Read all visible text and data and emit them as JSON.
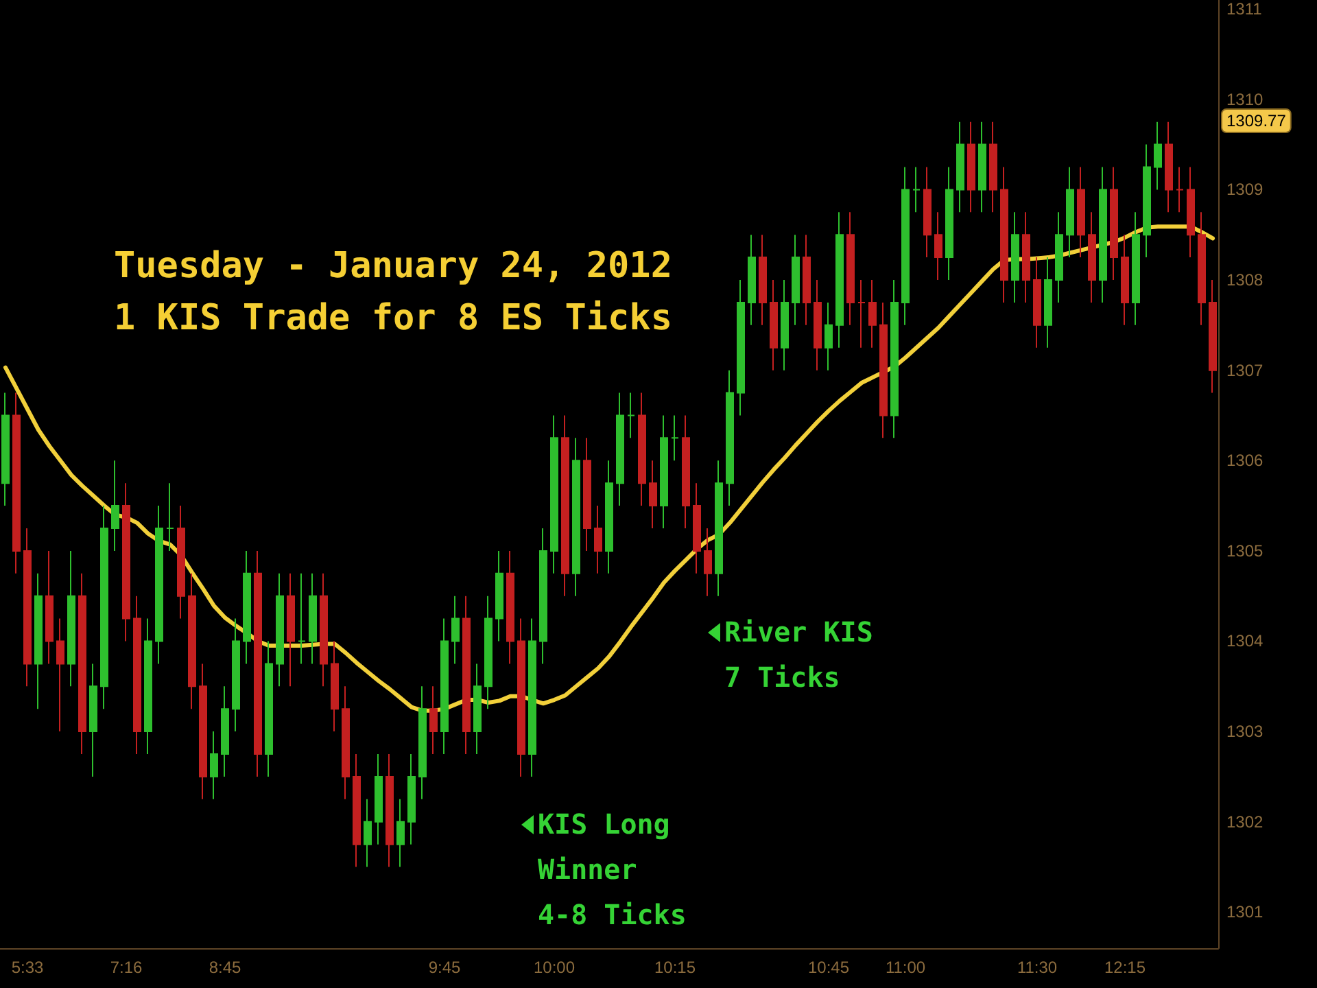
{
  "chart_data": {
    "type": "candlestick",
    "title": "Tuesday - January 24, 2012",
    "subtitle": "1 KIS Trade for 8 ES Ticks",
    "categories": [
      null,
      null,
      "5:33",
      null,
      null,
      null,
      null,
      null,
      null,
      null,
      null,
      "7:16",
      null,
      null,
      null,
      null,
      null,
      null,
      null,
      null,
      "8:45",
      null,
      null,
      null,
      null,
      null,
      null,
      null,
      null,
      null,
      null,
      null,
      null,
      null,
      null,
      null,
      null,
      null,
      null,
      null,
      "9:45",
      null,
      null,
      null,
      null,
      null,
      null,
      null,
      null,
      null,
      "10:00",
      null,
      null,
      null,
      null,
      null,
      null,
      null,
      null,
      null,
      null,
      "10:15",
      null,
      null,
      null,
      null,
      null,
      null,
      null,
      null,
      null,
      null,
      null,
      null,
      null,
      "10:45",
      null,
      null,
      null,
      null,
      null,
      null,
      "11:00",
      null,
      null,
      null,
      null,
      null,
      null,
      null,
      null,
      null,
      null,
      null,
      "11:30",
      null,
      null,
      null,
      null,
      null,
      null,
      null,
      "12:15",
      null,
      null,
      null,
      null,
      null,
      null,
      null,
      null
    ],
    "ylim": [
      1300.6,
      1311.1
    ],
    "yticks": [
      1301,
      1302,
      1303,
      1304,
      1305,
      1306,
      1307,
      1308,
      1309,
      1310,
      1311
    ],
    "series": [
      {
        "ohlc": [
          [
            1305.75,
            1306.75,
            1305.5,
            1306.5
          ],
          [
            1306.5,
            1306.75,
            1304.75,
            1305.0
          ],
          [
            1305.0,
            1305.25,
            1303.5,
            1303.75
          ],
          [
            1303.75,
            1304.75,
            1303.25,
            1304.5
          ],
          [
            1304.5,
            1305.0,
            1303.75,
            1304.0
          ],
          [
            1304.0,
            1304.25,
            1303.0,
            1303.75
          ],
          [
            1303.75,
            1305.0,
            1303.5,
            1304.5
          ],
          [
            1304.5,
            1304.75,
            1302.75,
            1303.0
          ],
          [
            1303.0,
            1303.75,
            1302.5,
            1303.5
          ],
          [
            1303.5,
            1305.5,
            1303.25,
            1305.25
          ],
          [
            1305.25,
            1306.0,
            1305.0,
            1305.5
          ],
          [
            1305.5,
            1305.75,
            1304.0,
            1304.25
          ],
          [
            1304.25,
            1304.5,
            1302.75,
            1303.0
          ],
          [
            1303.0,
            1304.25,
            1302.75,
            1304.0
          ],
          [
            1304.0,
            1305.5,
            1303.75,
            1305.25
          ],
          [
            1305.25,
            1305.75,
            1305.0,
            1305.25
          ],
          [
            1305.25,
            1305.5,
            1304.25,
            1304.5
          ],
          [
            1304.5,
            1304.75,
            1303.25,
            1303.5
          ],
          [
            1303.5,
            1303.75,
            1302.25,
            1302.5
          ],
          [
            1302.5,
            1303.0,
            1302.25,
            1302.75
          ],
          [
            1302.75,
            1303.5,
            1302.5,
            1303.25
          ],
          [
            1303.25,
            1304.25,
            1303.0,
            1304.0
          ],
          [
            1304.0,
            1305.0,
            1303.75,
            1304.75
          ],
          [
            1304.75,
            1305.0,
            1302.5,
            1302.75
          ],
          [
            1302.75,
            1304.0,
            1302.5,
            1303.75
          ],
          [
            1303.75,
            1304.75,
            1303.5,
            1304.5
          ],
          [
            1304.5,
            1304.75,
            1303.5,
            1304.0
          ],
          [
            1304.0,
            1304.75,
            1303.75,
            1304.0
          ],
          [
            1304.0,
            1304.75,
            1303.75,
            1304.5
          ],
          [
            1304.5,
            1304.75,
            1303.5,
            1303.75
          ],
          [
            1303.75,
            1304.0,
            1303.0,
            1303.25
          ],
          [
            1303.25,
            1303.5,
            1302.25,
            1302.5
          ],
          [
            1302.5,
            1302.75,
            1301.5,
            1301.75
          ],
          [
            1301.75,
            1302.25,
            1301.5,
            1302.0
          ],
          [
            1302.0,
            1302.75,
            1301.75,
            1302.5
          ],
          [
            1302.5,
            1302.75,
            1301.5,
            1301.75
          ],
          [
            1301.75,
            1302.25,
            1301.5,
            1302.0
          ],
          [
            1302.0,
            1302.75,
            1301.75,
            1302.5
          ],
          [
            1302.5,
            1303.5,
            1302.25,
            1303.25
          ],
          [
            1303.25,
            1303.5,
            1302.75,
            1303.0
          ],
          [
            1303.0,
            1304.25,
            1302.75,
            1304.0
          ],
          [
            1304.0,
            1304.5,
            1303.75,
            1304.25
          ],
          [
            1304.25,
            1304.5,
            1302.75,
            1303.0
          ],
          [
            1303.0,
            1303.75,
            1302.75,
            1303.5
          ],
          [
            1303.5,
            1304.5,
            1303.25,
            1304.25
          ],
          [
            1304.25,
            1305.0,
            1304.0,
            1304.75
          ],
          [
            1304.75,
            1305.0,
            1303.75,
            1304.0
          ],
          [
            1304.0,
            1304.25,
            1302.5,
            1302.75
          ],
          [
            1302.75,
            1304.25,
            1302.5,
            1304.0
          ],
          [
            1304.0,
            1305.25,
            1303.75,
            1305.0
          ],
          [
            1305.0,
            1306.5,
            1304.75,
            1306.25
          ],
          [
            1306.25,
            1306.5,
            1304.5,
            1304.75
          ],
          [
            1304.75,
            1306.25,
            1304.5,
            1306.0
          ],
          [
            1306.0,
            1306.25,
            1305.0,
            1305.25
          ],
          [
            1305.25,
            1305.5,
            1304.75,
            1305.0
          ],
          [
            1305.0,
            1306.0,
            1304.75,
            1305.75
          ],
          [
            1305.75,
            1306.75,
            1305.5,
            1306.5
          ],
          [
            1306.5,
            1306.75,
            1306.25,
            1306.5
          ],
          [
            1306.5,
            1306.75,
            1305.5,
            1305.75
          ],
          [
            1305.75,
            1306.0,
            1305.25,
            1305.5
          ],
          [
            1305.5,
            1306.5,
            1305.25,
            1306.25
          ],
          [
            1306.25,
            1306.5,
            1306.0,
            1306.25
          ],
          [
            1306.25,
            1306.5,
            1305.25,
            1305.5
          ],
          [
            1305.5,
            1305.75,
            1304.75,
            1305.0
          ],
          [
            1305.0,
            1305.25,
            1304.5,
            1304.75
          ],
          [
            1304.75,
            1306.0,
            1304.5,
            1305.75
          ],
          [
            1305.75,
            1307.0,
            1305.5,
            1306.75
          ],
          [
            1306.75,
            1308.0,
            1306.5,
            1307.75
          ],
          [
            1307.75,
            1308.5,
            1307.5,
            1308.25
          ],
          [
            1308.25,
            1308.5,
            1307.5,
            1307.75
          ],
          [
            1307.75,
            1308.0,
            1307.0,
            1307.25
          ],
          [
            1307.25,
            1308.0,
            1307.0,
            1307.75
          ],
          [
            1307.75,
            1308.5,
            1307.5,
            1308.25
          ],
          [
            1308.25,
            1308.5,
            1307.5,
            1307.75
          ],
          [
            1307.75,
            1308.0,
            1307.0,
            1307.25
          ],
          [
            1307.25,
            1307.75,
            1307.0,
            1307.5
          ],
          [
            1307.5,
            1308.75,
            1307.25,
            1308.5
          ],
          [
            1308.5,
            1308.75,
            1307.5,
            1307.75
          ],
          [
            1307.75,
            1308.0,
            1307.25,
            1307.75
          ],
          [
            1307.75,
            1308.0,
            1307.25,
            1307.5
          ],
          [
            1307.5,
            1307.75,
            1306.25,
            1306.5
          ],
          [
            1306.5,
            1308.0,
            1306.25,
            1307.75
          ],
          [
            1307.75,
            1309.25,
            1307.5,
            1309.0
          ],
          [
            1309.0,
            1309.25,
            1308.75,
            1309.0
          ],
          [
            1309.0,
            1309.25,
            1308.25,
            1308.5
          ],
          [
            1308.5,
            1308.75,
            1308.0,
            1308.25
          ],
          [
            1308.25,
            1309.25,
            1308.0,
            1309.0
          ],
          [
            1309.0,
            1309.75,
            1308.75,
            1309.5
          ],
          [
            1309.5,
            1309.75,
            1308.75,
            1309.0
          ],
          [
            1309.0,
            1309.75,
            1308.75,
            1309.5
          ],
          [
            1309.5,
            1309.75,
            1308.75,
            1309.0
          ],
          [
            1309.0,
            1309.25,
            1307.75,
            1308.0
          ],
          [
            1308.0,
            1308.75,
            1307.75,
            1308.5
          ],
          [
            1308.5,
            1308.75,
            1307.75,
            1308.0
          ],
          [
            1308.0,
            1308.25,
            1307.25,
            1307.5
          ],
          [
            1307.5,
            1308.25,
            1307.25,
            1308.0
          ],
          [
            1308.0,
            1308.75,
            1307.75,
            1308.5
          ],
          [
            1308.5,
            1309.25,
            1308.25,
            1309.0
          ],
          [
            1309.0,
            1309.25,
            1308.25,
            1308.5
          ],
          [
            1308.5,
            1308.75,
            1307.75,
            1308.0
          ],
          [
            1308.0,
            1309.25,
            1307.75,
            1309.0
          ],
          [
            1309.0,
            1309.25,
            1308.0,
            1308.25
          ],
          [
            1308.25,
            1308.5,
            1307.5,
            1307.75
          ],
          [
            1307.75,
            1308.75,
            1307.5,
            1308.5
          ],
          [
            1308.5,
            1309.5,
            1308.25,
            1309.25
          ],
          [
            1309.25,
            1309.75,
            1309.0,
            1309.5
          ],
          [
            1309.5,
            1309.75,
            1308.75,
            1309.0
          ],
          [
            1309.0,
            1309.25,
            1308.75,
            1309.0
          ],
          [
            1309.0,
            1309.25,
            1308.25,
            1308.5
          ],
          [
            1308.5,
            1308.75,
            1307.5,
            1307.75
          ],
          [
            1307.75,
            1308.0,
            1306.75,
            1307.0
          ]
        ],
        "colors": [
          "#2ebf2e",
          "#c42020",
          "#c42020",
          "#2ebf2e",
          "#c42020",
          "#c42020",
          "#2ebf2e",
          "#c42020",
          "#2ebf2e",
          "#2ebf2e",
          "#2ebf2e",
          "#c42020",
          "#c42020",
          "#2ebf2e",
          "#2ebf2e",
          "#2ebf2e",
          "#c42020",
          "#c42020",
          "#c42020",
          "#2ebf2e",
          "#2ebf2e",
          "#2ebf2e",
          "#2ebf2e",
          "#c42020",
          "#2ebf2e",
          "#2ebf2e",
          "#c42020",
          "#2ebf2e",
          "#2ebf2e",
          "#c42020",
          "#c42020",
          "#c42020",
          "#c42020",
          "#2ebf2e",
          "#2ebf2e",
          "#c42020",
          "#2ebf2e",
          "#2ebf2e",
          "#2ebf2e",
          "#c42020",
          "#2ebf2e",
          "#2ebf2e",
          "#c42020",
          "#2ebf2e",
          "#2ebf2e",
          "#2ebf2e",
          "#c42020",
          "#c42020",
          "#2ebf2e",
          "#2ebf2e",
          "#2ebf2e",
          "#c42020",
          "#2ebf2e",
          "#c42020",
          "#c42020",
          "#2ebf2e",
          "#2ebf2e",
          "#2ebf2e",
          "#c42020",
          "#c42020",
          "#2ebf2e",
          "#2ebf2e",
          "#c42020",
          "#c42020",
          "#c42020",
          "#2ebf2e",
          "#2ebf2e",
          "#2ebf2e",
          "#2ebf2e",
          "#c42020",
          "#c42020",
          "#2ebf2e",
          "#2ebf2e",
          "#c42020",
          "#c42020",
          "#2ebf2e",
          "#2ebf2e",
          "#c42020",
          "#c42020",
          "#c42020",
          "#c42020",
          "#2ebf2e",
          "#2ebf2e",
          "#2ebf2e",
          "#c42020",
          "#c42020",
          "#2ebf2e",
          "#2ebf2e",
          "#c42020",
          "#2ebf2e",
          "#c42020",
          "#c42020",
          "#2ebf2e",
          "#c42020",
          "#c42020",
          "#2ebf2e",
          "#2ebf2e",
          "#2ebf2e",
          "#c42020",
          "#c42020",
          "#2ebf2e",
          "#c42020",
          "#c42020",
          "#2ebf2e",
          "#2ebf2e",
          "#2ebf2e",
          "#c42020",
          "#c42020",
          "#c42020",
          "#c42020",
          "#c42020"
        ]
      },
      {
        "type": "line",
        "color": "#f2d03a",
        "values": [
          1307.03,
          1306.8,
          1306.57,
          1306.34,
          1306.16,
          1306.0,
          1305.84,
          1305.72,
          1305.61,
          1305.5,
          1305.4,
          1305.37,
          1305.31,
          1305.19,
          1305.11,
          1305.07,
          1304.95,
          1304.76,
          1304.58,
          1304.39,
          1304.26,
          1304.17,
          1304.09,
          1304.0,
          1303.95,
          1303.95,
          1303.95,
          1303.95,
          1303.96,
          1303.97,
          1303.97,
          1303.87,
          1303.76,
          1303.66,
          1303.56,
          1303.47,
          1303.37,
          1303.27,
          1303.23,
          1303.23,
          1303.25,
          1303.3,
          1303.35,
          1303.35,
          1303.32,
          1303.34,
          1303.39,
          1303.39,
          1303.35,
          1303.31,
          1303.35,
          1303.4,
          1303.5,
          1303.6,
          1303.7,
          1303.83,
          1303.99,
          1304.16,
          1304.32,
          1304.48,
          1304.65,
          1304.78,
          1304.9,
          1305.02,
          1305.12,
          1305.18,
          1305.31,
          1305.46,
          1305.61,
          1305.76,
          1305.9,
          1306.03,
          1306.17,
          1306.3,
          1306.43,
          1306.55,
          1306.66,
          1306.76,
          1306.86,
          1306.92,
          1306.98,
          1307.04,
          1307.14,
          1307.25,
          1307.36,
          1307.47,
          1307.6,
          1307.73,
          1307.86,
          1307.99,
          1308.12,
          1308.22,
          1308.23,
          1308.23,
          1308.24,
          1308.25,
          1308.27,
          1308.3,
          1308.33,
          1308.36,
          1308.39,
          1308.42,
          1308.47,
          1308.53,
          1308.58,
          1308.59,
          1308.59,
          1308.59,
          1308.59,
          1308.53,
          1308.46
        ]
      }
    ],
    "annotations": [
      "River KIS\n7 Ticks",
      "KIS Long\nWinner\n4-8 Ticks",
      "1309.77"
    ]
  }
}
